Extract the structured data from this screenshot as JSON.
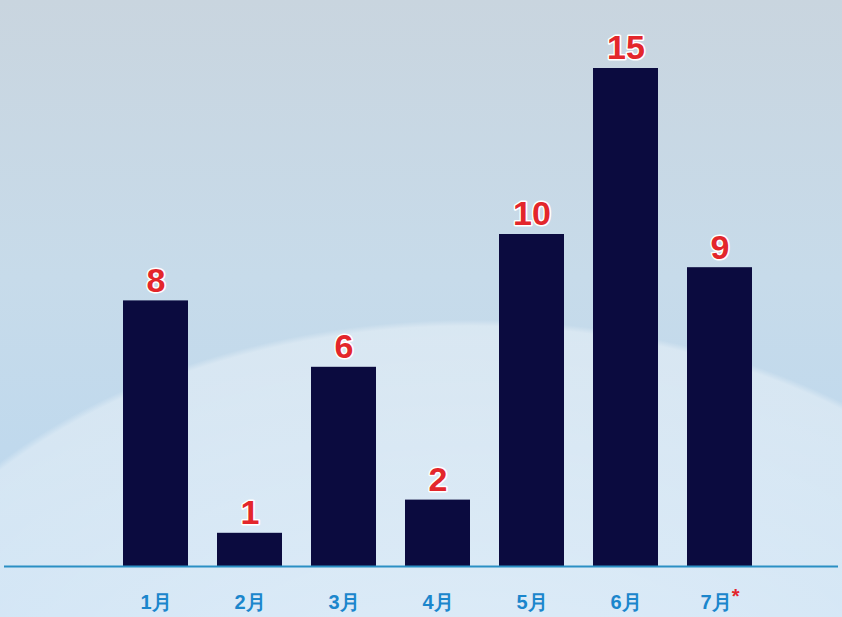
{
  "chart_data": {
    "type": "bar",
    "categories": [
      "1月",
      "2月",
      "3月",
      "4月",
      "5月",
      "6月",
      "7月*"
    ],
    "values": [
      8,
      1,
      6,
      2,
      10,
      15,
      9
    ],
    "color": "#0b0b3f",
    "ylim": [
      0,
      15
    ],
    "data_labels": true,
    "tick_labels": "x",
    "grid": false
  }
}
